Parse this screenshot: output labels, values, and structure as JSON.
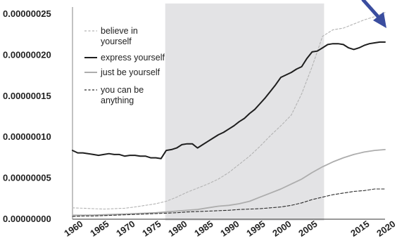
{
  "chart_data": {
    "type": "line",
    "title": "",
    "xlabel": "",
    "ylabel": "",
    "xlim": [
      1960,
      2020
    ],
    "ylim": [
      0,
      2.5e-07
    ],
    "x_ticks": [
      "1960",
      "1965",
      "1970",
      "1975",
      "1980",
      "1985",
      "1990",
      "1995",
      "2000",
      "2005",
      "2015",
      "2020"
    ],
    "y_ticks": [
      "0.00000000",
      "0.00000005",
      "0.00000010",
      "0.00000015",
      "0.00000020",
      "0.00000025"
    ],
    "grid": false,
    "legend_position": "top-left",
    "shaded_region": {
      "x_start": 1977.8,
      "x_end": 2008.3,
      "color": "#e3e3e5"
    },
    "annotation_arrow": {
      "color": "#3a4d9f",
      "direction": "pointing down-left toward the top-right end of the lines"
    },
    "series": [
      {
        "name": "believe in yourself",
        "legend_lines": [
          "believe in",
          "yourself"
        ],
        "color": "#b3b3b3",
        "style": "dashed",
        "x": [
          1960,
          1962,
          1964,
          1966,
          1968,
          1970,
          1972,
          1974,
          1976,
          1978,
          1980,
          1982,
          1984,
          1986,
          1988,
          1990,
          1992,
          1994,
          1996,
          1998,
          2000,
          2002,
          2004,
          2006,
          2008,
          2010,
          2012,
          2014,
          2016,
          2018,
          2020
        ],
        "values": [
          1.3e-08,
          1.25e-08,
          1.2e-08,
          1.15e-08,
          1.2e-08,
          1.25e-08,
          1.4e-08,
          1.6e-08,
          1.8e-08,
          2.1e-08,
          2.6e-08,
          3.2e-08,
          3.7e-08,
          4.2e-08,
          4.8e-08,
          5.6e-08,
          6.6e-08,
          7.6e-08,
          8.8e-08,
          1.01e-07,
          1.13e-07,
          1.26e-07,
          1.52e-07,
          1.85e-07,
          2.22e-07,
          2.3e-07,
          2.32e-07,
          2.37e-07,
          2.42e-07,
          2.46e-07,
          2.51e-07
        ]
      },
      {
        "name": "express yourself",
        "legend_lines": [
          "express yourself"
        ],
        "color": "#1e1e1e",
        "style": "solid",
        "x": [
          1960,
          1961,
          1962,
          1963,
          1964,
          1965,
          1966,
          1967,
          1968,
          1969,
          1970,
          1971,
          1972,
          1973,
          1974,
          1975,
          1976,
          1977,
          1978,
          1979,
          1980,
          1981,
          1982,
          1983,
          1984,
          1985,
          1986,
          1987,
          1988,
          1989,
          1990,
          1991,
          1992,
          1993,
          1994,
          1995,
          1996,
          1997,
          1998,
          1999,
          2000,
          2001,
          2002,
          2003,
          2004,
          2005,
          2006,
          2007,
          2008,
          2009,
          2010,
          2011,
          2012,
          2013,
          2014,
          2015,
          2016,
          2017,
          2018,
          2019,
          2020
        ],
        "values": [
          8.3e-08,
          8e-08,
          8e-08,
          7.9e-08,
          7.8e-08,
          7.7e-08,
          7.8e-08,
          7.9e-08,
          7.8e-08,
          7.8e-08,
          7.6e-08,
          7.7e-08,
          7.7e-08,
          7.6e-08,
          7.6e-08,
          7.4e-08,
          7.4e-08,
          7.3e-08,
          8.3e-08,
          8.4e-08,
          8.6e-08,
          9e-08,
          9.1e-08,
          9.1e-08,
          8.6e-08,
          9e-08,
          9.4e-08,
          9.8e-08,
          1.02e-07,
          1.05e-07,
          1.09e-07,
          1.13e-07,
          1.18e-07,
          1.22e-07,
          1.28e-07,
          1.33e-07,
          1.4e-07,
          1.47e-07,
          1.55e-07,
          1.63e-07,
          1.72e-07,
          1.75e-07,
          1.78e-07,
          1.82e-07,
          1.85e-07,
          1.95e-07,
          2.03e-07,
          2.04e-07,
          2.08e-07,
          2.12e-07,
          2.13e-07,
          2.13e-07,
          2.12e-07,
          2.08e-07,
          2.06e-07,
          2.08e-07,
          2.11e-07,
          2.13e-07,
          2.14e-07,
          2.15e-07,
          2.15e-07
        ]
      },
      {
        "name": "just be yourself",
        "legend_lines": [
          "just be yourself"
        ],
        "color": "#adadad",
        "style": "solid",
        "x": [
          1960,
          1962,
          1964,
          1966,
          1968,
          1970,
          1972,
          1974,
          1976,
          1978,
          1980,
          1982,
          1984,
          1986,
          1988,
          1990,
          1992,
          1994,
          1996,
          1998,
          2000,
          2002,
          2004,
          2006,
          2008,
          2010,
          2012,
          2014,
          2016,
          2018,
          2020
        ],
        "values": [
          4e-09,
          4e-09,
          4.2e-09,
          4.5e-09,
          5e-09,
          5.5e-09,
          6e-09,
          6.5e-09,
          7e-09,
          8e-09,
          9e-09,
          1e-08,
          1.1e-08,
          1.3e-08,
          1.5e-08,
          1.6e-08,
          1.8e-08,
          2.1e-08,
          2.6e-08,
          3.1e-08,
          3.6e-08,
          4.2e-08,
          4.8e-08,
          5.6e-08,
          6.3e-08,
          6.9e-08,
          7.4e-08,
          7.8e-08,
          8.1e-08,
          8.3e-08,
          8.4e-08
        ]
      },
      {
        "name": "you can be anything",
        "legend_lines": [
          "you can be",
          "anything"
        ],
        "color": "#2a2a2a",
        "style": "dashed",
        "x": [
          1960,
          1962,
          1964,
          1966,
          1968,
          1970,
          1972,
          1974,
          1976,
          1978,
          1980,
          1982,
          1984,
          1986,
          1988,
          1990,
          1992,
          1994,
          1996,
          1998,
          2000,
          2002,
          2004,
          2006,
          2008,
          2010,
          2012,
          2014,
          2016,
          2018,
          2020
        ],
        "values": [
          2.5e-09,
          3e-09,
          3e-09,
          3.5e-09,
          4e-09,
          4.5e-09,
          5e-09,
          5.5e-09,
          6e-09,
          6.5e-09,
          7e-09,
          8e-09,
          8.5e-09,
          9e-09,
          9.5e-09,
          1e-08,
          1.1e-08,
          1.15e-08,
          1.2e-08,
          1.3e-08,
          1.4e-08,
          1.6e-08,
          1.9e-08,
          2.3e-08,
          2.6e-08,
          2.9e-08,
          3.1e-08,
          3.3e-08,
          3.4e-08,
          3.6e-08,
          3.6e-08
        ]
      }
    ]
  }
}
